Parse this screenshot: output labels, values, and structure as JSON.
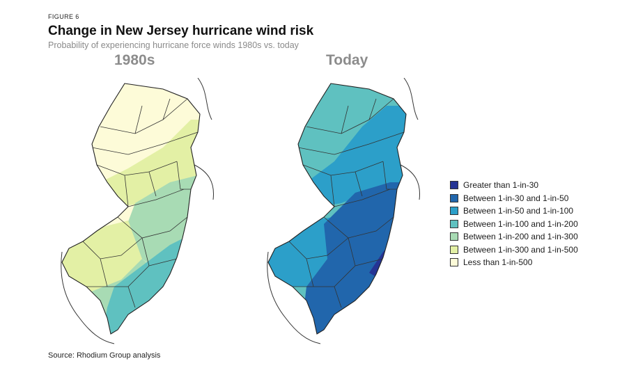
{
  "figure": {
    "label": "FIGURE 6",
    "title": "Change in New Jersey hurricane wind risk",
    "subtitle": "Probability of experiencing hurricane force winds 1980s vs. today",
    "source": "Source: Rhodium Group analysis"
  },
  "panels": [
    {
      "title": "1980s"
    },
    {
      "title": "Today"
    }
  ],
  "legend": [
    {
      "label": "Greater than 1-in-30",
      "color": "#253494"
    },
    {
      "label": "Between 1-in-30 and 1-in-50",
      "color": "#2166ac"
    },
    {
      "label": "Between 1-in-50 and 1-in-100",
      "color": "#2c9fc9"
    },
    {
      "label": "Between 1-in-100 and 1-in-200",
      "color": "#5fc1c0"
    },
    {
      "label": "Between 1-in-200 and 1-in-300",
      "color": "#a8dbb4"
    },
    {
      "label": "Between 1-in-300 and 1-in-500",
      "color": "#e3f0a5"
    },
    {
      "label": "Less than 1-in-500",
      "color": "#fdfbd8"
    }
  ],
  "map_regions": {
    "1980s": {
      "north": "Less than 1-in-500",
      "north_central": "Between 1-in-300 and 1-in-500",
      "central_east": "Between 1-in-200 and 1-in-300",
      "south_west": "Between 1-in-300 and 1-in-500",
      "south_central": "Between 1-in-200 and 1-in-300",
      "coast_south": "Between 1-in-100 and 1-in-200"
    },
    "Today": {
      "north": "Between 1-in-100 and 1-in-200",
      "north_central": "Between 1-in-50 and 1-in-100",
      "central_east": "Between 1-in-30 and 1-in-50",
      "south_west": "Between 1-in-50 and 1-in-100",
      "south_central": "Between 1-in-30 and 1-in-50",
      "coast_south": "Between 1-in-30 and 1-in-50",
      "coast_central": "Greater than 1-in-30"
    }
  }
}
